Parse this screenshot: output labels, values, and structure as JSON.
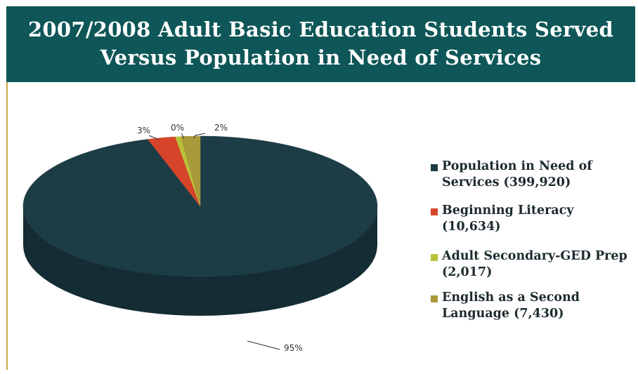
{
  "title": {
    "line1": "2007/2008 Adult Basic Education Students Served",
    "line2": "Versus Population in Need of Services"
  },
  "colors": {
    "title_bg": "#0e5657",
    "accent_rule": "#c7a64a"
  },
  "chart_data": {
    "type": "pie",
    "title": "2007/2008 Adult Basic Education Students Served Versus Population in Need of Services",
    "three_d": true,
    "legend_position": "right",
    "slices": [
      {
        "label": "Population in Need of Services (399,920)",
        "value": 399920,
        "percent_label": "95%",
        "color": "#1d3d46",
        "side_color": "#142c33"
      },
      {
        "label": "Beginning Literacy (10,634)",
        "value": 10634,
        "percent_label": "3%",
        "color": "#d6452a",
        "side_color": "#a8331d"
      },
      {
        "label": "Adult Secondary-GED Prep (2,017)",
        "value": 2017,
        "percent_label": "0%",
        "color": "#b9c23a",
        "side_color": "#8f962a"
      },
      {
        "label": "English as a Second Language (7,430)",
        "value": 7430,
        "percent_label": "2%",
        "color": "#a89a3a",
        "side_color": "#807429"
      }
    ]
  },
  "legend": {
    "items": [
      {
        "text": "Population in Need of\nServices (399,920)",
        "color": "#1d3d46"
      },
      {
        "text": "Beginning Literacy (10,634)",
        "color": "#d6452a"
      },
      {
        "text": "Adult Secondary-GED Prep\n(2,017)",
        "color": "#b9c23a"
      },
      {
        "text": "English as a Second\nLanguage (7,430)",
        "color": "#a89a3a"
      }
    ]
  }
}
